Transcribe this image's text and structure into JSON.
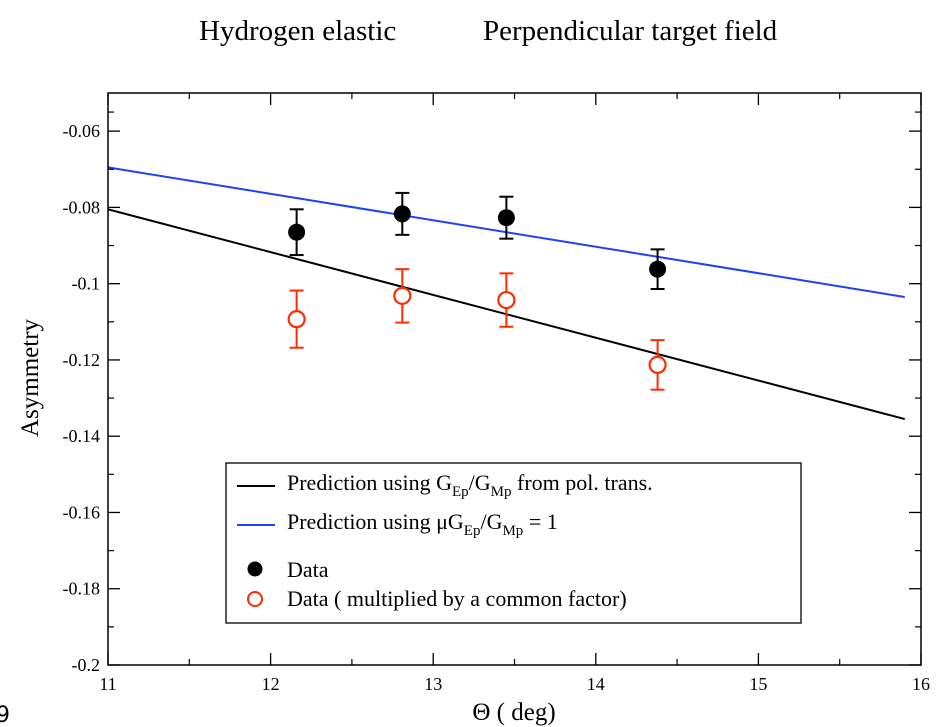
{
  "chart_data": {
    "type": "scatter",
    "title_left": "Hydrogen elastic",
    "title_right": "Perpendicular target field",
    "xlabel": "Θ ( deg)",
    "ylabel": "Asymmetry",
    "xlim": [
      11,
      16
    ],
    "ylim": [
      -0.2,
      -0.05
    ],
    "x_ticks": [
      11,
      12,
      13,
      14,
      15,
      16
    ],
    "x_tick_labels": [
      "11",
      "12",
      "13",
      "14",
      "15",
      "16"
    ],
    "y_ticks": [
      -0.2,
      -0.18,
      -0.16,
      -0.14,
      -0.12,
      -0.1,
      -0.08,
      -0.06
    ],
    "y_tick_labels": [
      "-0.2",
      "-0.18",
      "-0.16",
      "-0.14",
      "-0.12",
      "-0.1",
      "-0.08",
      "-0.06"
    ],
    "grid": false,
    "legend_position": "lower-center",
    "colors": {
      "black_line": "#000000",
      "blue_line": "#1f3fff",
      "data": "#000000",
      "data_scaled": "#ff2a00"
    },
    "series": [
      {
        "kind": "line",
        "color": "#000000",
        "legend_label": {
          "pre": "Prediction using G",
          "sub1": "Ep",
          "mid": "/G",
          "sub2": "Mp",
          "post": " from pol. trans."
        },
        "x": [
          11.0,
          15.9
        ],
        "y": [
          -0.0805,
          -0.1355
        ]
      },
      {
        "kind": "line",
        "color": "#1f3fff",
        "legend_label": {
          "pre": "Prediction using μG",
          "sub1": "Ep",
          "mid": "/G",
          "sub2": "Mp",
          "post": " = 1"
        },
        "x": [
          11.0,
          15.9
        ],
        "y": [
          -0.0695,
          -0.1035
        ]
      },
      {
        "kind": "points",
        "marker": "filled-circle",
        "color": "#000000",
        "legend_label": {
          "pre": "Data"
        },
        "x": [
          12.16,
          12.81,
          13.45,
          14.38
        ],
        "y": [
          -0.0865,
          -0.0817,
          -0.0827,
          -0.0962
        ],
        "err": [
          0.006,
          0.0055,
          0.0055,
          0.0052
        ]
      },
      {
        "kind": "points",
        "marker": "open-circle",
        "color": "#ff2a00",
        "legend_label": {
          "pre": "Data ( multiplied by a common factor)"
        },
        "x": [
          12.16,
          12.81,
          13.45,
          14.38
        ],
        "y": [
          -0.1093,
          -0.1032,
          -0.1043,
          -0.1213
        ],
        "err": [
          0.0075,
          0.007,
          0.007,
          0.0065
        ]
      }
    ]
  },
  "page": {
    "corner_label": "9"
  }
}
